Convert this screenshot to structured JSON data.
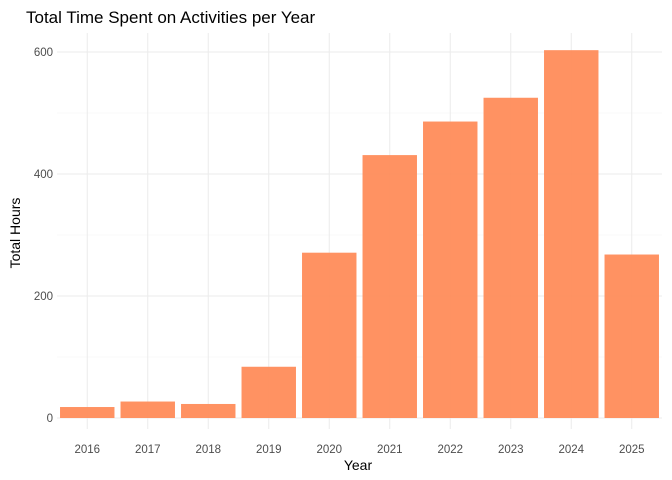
{
  "chart_data": {
    "type": "bar",
    "title": "Total Time Spent on Activities per Year",
    "xlabel": "Year",
    "ylabel": "Total Hours",
    "categories": [
      "2016",
      "2017",
      "2018",
      "2019",
      "2020",
      "2021",
      "2022",
      "2023",
      "2024",
      "2025"
    ],
    "values": [
      18,
      27,
      23,
      84,
      271,
      431,
      486,
      525,
      603,
      268
    ],
    "ylim": [
      0,
      630
    ],
    "yticks": [
      0,
      200,
      400,
      600
    ],
    "grid": true,
    "legend": "none",
    "bar_color": "#ff8c5a"
  }
}
